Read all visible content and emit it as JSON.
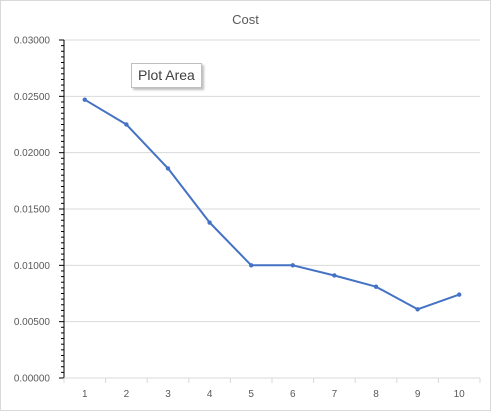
{
  "chart_data": {
    "type": "line",
    "title": "Cost",
    "xlabel": "",
    "ylabel": "",
    "categories": [
      "1",
      "2",
      "3",
      "4",
      "5",
      "6",
      "7",
      "8",
      "9",
      "10"
    ],
    "series": [
      {
        "values": [
          0.0247,
          0.0225,
          0.0186,
          0.0138,
          0.01,
          0.01,
          0.0091,
          0.0081,
          0.0061,
          0.0074
        ]
      }
    ],
    "ylim": [
      0,
      0.03
    ],
    "yticks": [
      "0.00000",
      "0.00500",
      "0.01000",
      "0.01500",
      "0.02000",
      "0.02500",
      "0.03000"
    ],
    "grid": true,
    "legend": "none",
    "line_color": "#4472c4",
    "grid_color": "#d9d9d9",
    "axis_color": "#000000"
  },
  "tooltip": {
    "label": "Plot Area"
  }
}
